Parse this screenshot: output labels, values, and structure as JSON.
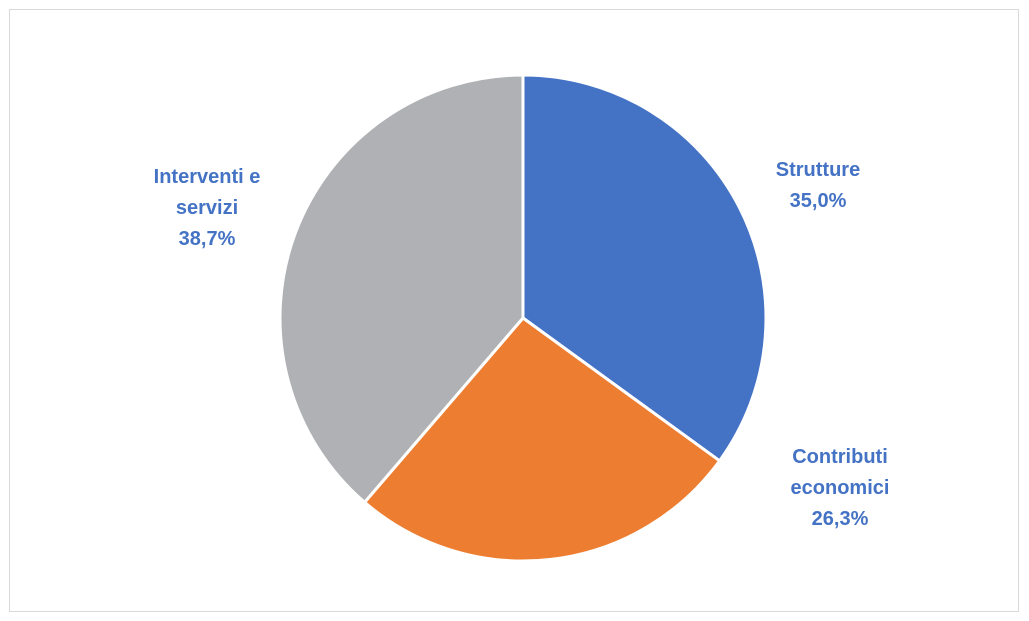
{
  "chart_data": {
    "type": "pie",
    "title": "",
    "slices": [
      {
        "label_lines": [
          "Strutture"
        ],
        "value_label": "35,0%",
        "value": 35.0,
        "color": "#4472c4"
      },
      {
        "label_lines": [
          "Contributi",
          "economici"
        ],
        "value_label": "26,3%",
        "value": 26.3,
        "color": "#ed7d31"
      },
      {
        "label_lines": [
          "Interventi e",
          "servizi"
        ],
        "value_label": "38,7%",
        "value": 38.7,
        "color": "#afb1b4"
      }
    ],
    "label_color": "#4472c4",
    "start_angle_deg": 0,
    "direction": "clockwise",
    "legend": "none"
  }
}
